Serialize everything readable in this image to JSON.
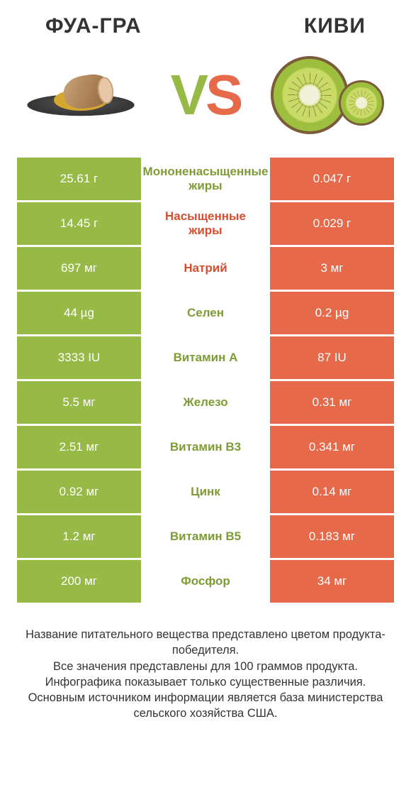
{
  "colors": {
    "green": "#97b945",
    "orange": "#e6694a",
    "green_text": "#7e9b34",
    "orange_text": "#d64e31",
    "title": "#333333"
  },
  "header": {
    "left": "ФУА-ГРА",
    "right": "КИВИ"
  },
  "vs": {
    "v": "V",
    "s": "S"
  },
  "rows": [
    {
      "left": "25.61 г",
      "label": "Мононенасыщенные жиры",
      "right": "0.047 г",
      "winner": "left"
    },
    {
      "left": "14.45 г",
      "label": "Насыщенные жиры",
      "right": "0.029 г",
      "winner": "right"
    },
    {
      "left": "697 мг",
      "label": "Натрий",
      "right": "3 мг",
      "winner": "right"
    },
    {
      "left": "44 µg",
      "label": "Селен",
      "right": "0.2 µg",
      "winner": "left"
    },
    {
      "left": "3333 IU",
      "label": "Витамин A",
      "right": "87 IU",
      "winner": "left"
    },
    {
      "left": "5.5 мг",
      "label": "Железо",
      "right": "0.31 мг",
      "winner": "left"
    },
    {
      "left": "2.51 мг",
      "label": "Витамин B3",
      "right": "0.341 мг",
      "winner": "left"
    },
    {
      "left": "0.92 мг",
      "label": "Цинк",
      "right": "0.14 мг",
      "winner": "left"
    },
    {
      "left": "1.2 мг",
      "label": "Витамин B5",
      "right": "0.183 мг",
      "winner": "left"
    },
    {
      "left": "200 мг",
      "label": "Фосфор",
      "right": "34 мг",
      "winner": "left"
    }
  ],
  "note_lines": [
    "Название питательного вещества представлено цветом продукта-победителя.",
    "Все значения представлены для 100 граммов продукта.",
    "Инфографика показывает только существенные различия.",
    "Основным источником информации является база министерства сельского хозяйства США."
  ]
}
